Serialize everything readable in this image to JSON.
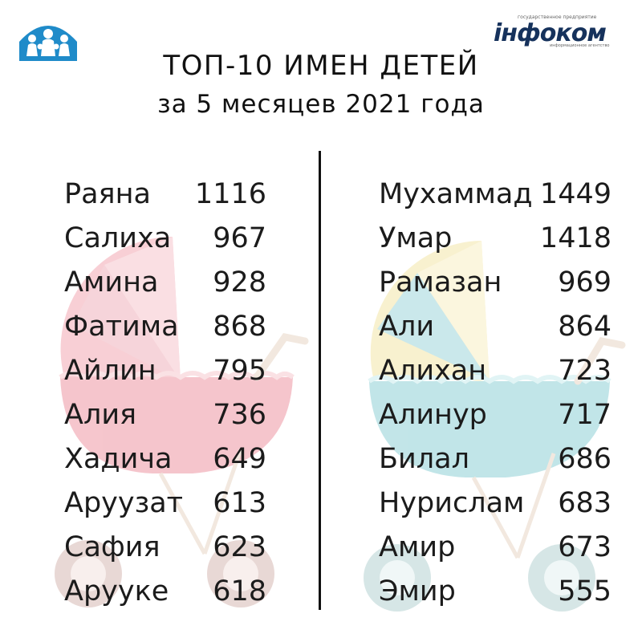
{
  "title": {
    "line1": "ТОП-10 ИМЕН ДЕТЕЙ",
    "line2": "за 5 месяцев 2021 года"
  },
  "logos": {
    "left_icon": "family-house-icon",
    "right": {
      "top_text": "государственное предприятие",
      "wordmark": "інфоком",
      "bottom_text": "информационное агентство"
    }
  },
  "colors": {
    "girl_stroller": "#ef9aa6",
    "boy_stroller": "#8fd0d6",
    "accent_yellow": "#f4e6a8",
    "logo_blue": "#1f8bc9",
    "wordmark": "#16325c"
  },
  "girls": [
    {
      "name": "Раяна",
      "count": "1116"
    },
    {
      "name": "Салиха",
      "count": "967"
    },
    {
      "name": "Амина",
      "count": "928"
    },
    {
      "name": "Фатима",
      "count": "868"
    },
    {
      "name": "Айлин",
      "count": "795"
    },
    {
      "name": "Алия",
      "count": "736"
    },
    {
      "name": "Хадича",
      "count": "649"
    },
    {
      "name": "Аруузат",
      "count": "613"
    },
    {
      "name": "Сафия",
      "count": "623"
    },
    {
      "name": "Аруукe",
      "count": "618"
    }
  ],
  "boys": [
    {
      "name": "Мухаммад",
      "count": "1449"
    },
    {
      "name": "Умар",
      "count": "1418"
    },
    {
      "name": "Рамазан",
      "count": "969"
    },
    {
      "name": "Али",
      "count": "864"
    },
    {
      "name": "Алихан",
      "count": "723"
    },
    {
      "name": "Алинур",
      "count": "717"
    },
    {
      "name": "Билал",
      "count": "686"
    },
    {
      "name": "Нурислам",
      "count": "683"
    },
    {
      "name": "Амир",
      "count": "673"
    },
    {
      "name": "Эмир",
      "count": "555"
    }
  ]
}
